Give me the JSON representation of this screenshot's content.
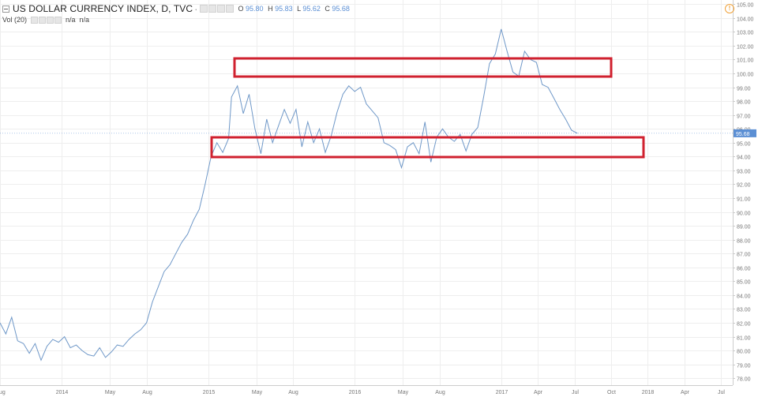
{
  "header": {
    "symbol_title": "US DOLLAR CURRENCY INDEX, D, TVC",
    "ohlc": {
      "o_label": "O",
      "o": "95.80",
      "h_label": "H",
      "h": "95.83",
      "l_label": "L",
      "l": "95.62",
      "c_label": "C",
      "c": "95.68"
    },
    "volume_label": "Vol (20)",
    "volume_value_1": "n/a",
    "volume_value_2": "n/a",
    "alert_icon": "!"
  },
  "colors": {
    "line": "#6f98c8",
    "box": "#d0212f",
    "grid": "#eeeeee",
    "price_tag": "#5b8fd4",
    "axis_text": "#777777"
  },
  "chart_data": {
    "type": "line",
    "title": "US DOLLAR CURRENCY INDEX, D, TVC",
    "ylim": [
      77.5,
      105.3
    ],
    "xlim": [
      2013.58,
      2018.58
    ],
    "y_ticks": [
      "105.00",
      "104.00",
      "103.00",
      "102.00",
      "101.00",
      "100.00",
      "99.00",
      "98.00",
      "97.00",
      "96.00",
      "95.00",
      "94.00",
      "93.00",
      "92.00",
      "91.00",
      "90.00",
      "89.00",
      "88.00",
      "87.00",
      "86.00",
      "85.00",
      "84.00",
      "83.00",
      "82.00",
      "81.00",
      "80.00",
      "79.00",
      "78.00"
    ],
    "x_ticks": [
      {
        "label": "Aug",
        "t": 2013.58
      },
      {
        "label": "2014",
        "t": 2014.0
      },
      {
        "label": "May",
        "t": 2014.33
      },
      {
        "label": "Aug",
        "t": 2014.58
      },
      {
        "label": "2015",
        "t": 2015.0
      },
      {
        "label": "May",
        "t": 2015.33
      },
      {
        "label": "Aug",
        "t": 2015.58
      },
      {
        "label": "2016",
        "t": 2016.0
      },
      {
        "label": "May",
        "t": 2016.33
      },
      {
        "label": "Aug",
        "t": 2016.58
      },
      {
        "label": "2017",
        "t": 2017.0
      },
      {
        "label": "Apr",
        "t": 2017.25
      },
      {
        "label": "Jul",
        "t": 2017.5
      },
      {
        "label": "Oct",
        "t": 2017.75
      },
      {
        "label": "2018",
        "t": 2018.0
      },
      {
        "label": "Apr",
        "t": 2018.25
      },
      {
        "label": "Jul",
        "t": 2018.5
      }
    ],
    "last_price": "95.68",
    "series": [
      {
        "x": [
          2013.58,
          2013.62,
          2013.66,
          2013.7,
          2013.74,
          2013.78,
          2013.82,
          2013.86,
          2013.9,
          2013.94,
          2013.98,
          2014.02,
          2014.06,
          2014.1,
          2014.14,
          2014.18,
          2014.22,
          2014.26,
          2014.3,
          2014.34,
          2014.38,
          2014.42,
          2014.46,
          2014.5,
          2014.54,
          2014.58,
          2014.62,
          2014.66,
          2014.7,
          2014.74,
          2014.78,
          2014.82,
          2014.86,
          2014.9,
          2014.94,
          2014.98,
          2015.02,
          2015.06,
          2015.1,
          2015.14,
          2015.16,
          2015.2,
          2015.24,
          2015.28,
          2015.32,
          2015.36,
          2015.4,
          2015.44,
          2015.48,
          2015.52,
          2015.56,
          2015.6,
          2015.64,
          2015.68,
          2015.72,
          2015.76,
          2015.8,
          2015.84,
          2015.88,
          2015.92,
          2015.96,
          2016.0,
          2016.04,
          2016.08,
          2016.12,
          2016.16,
          2016.2,
          2016.24,
          2016.28,
          2016.32,
          2016.36,
          2016.4,
          2016.44,
          2016.48,
          2016.52,
          2016.56,
          2016.6,
          2016.64,
          2016.68,
          2016.72,
          2016.76,
          2016.8,
          2016.84,
          2016.88,
          2016.92,
          2016.96,
          2017.0,
          2017.04,
          2017.08,
          2017.12,
          2017.16,
          2017.2,
          2017.24,
          2017.28,
          2017.32,
          2017.36,
          2017.4,
          2017.44,
          2017.48,
          2017.52
        ],
        "values": [
          82.0,
          81.2,
          82.4,
          80.7,
          80.5,
          79.8,
          80.5,
          79.3,
          80.3,
          80.8,
          80.6,
          81.0,
          80.2,
          80.4,
          80.0,
          79.7,
          79.6,
          80.2,
          79.5,
          79.9,
          80.4,
          80.3,
          80.8,
          81.2,
          81.5,
          82.0,
          83.5,
          84.6,
          85.7,
          86.2,
          87.0,
          87.8,
          88.4,
          89.4,
          90.2,
          92.0,
          94.0,
          95.0,
          94.3,
          95.3,
          98.3,
          99.1,
          97.1,
          98.5,
          96.0,
          94.2,
          96.7,
          95.0,
          96.2,
          97.4,
          96.4,
          97.4,
          94.7,
          96.5,
          95.0,
          96.0,
          94.3,
          95.5,
          97.2,
          98.5,
          99.1,
          98.7,
          99.0,
          97.8,
          97.3,
          96.8,
          95.0,
          94.8,
          94.5,
          93.2,
          94.7,
          95.0,
          94.2,
          96.5,
          93.6,
          95.4,
          96.0,
          95.4,
          95.1,
          95.6,
          94.4,
          95.6,
          96.1,
          98.3,
          100.7,
          101.4,
          103.2,
          101.6,
          100.1,
          99.8,
          101.6,
          101.0,
          100.8,
          99.2,
          99.0,
          98.2,
          97.4,
          96.7,
          95.9,
          95.68
        ]
      }
    ]
  }
}
